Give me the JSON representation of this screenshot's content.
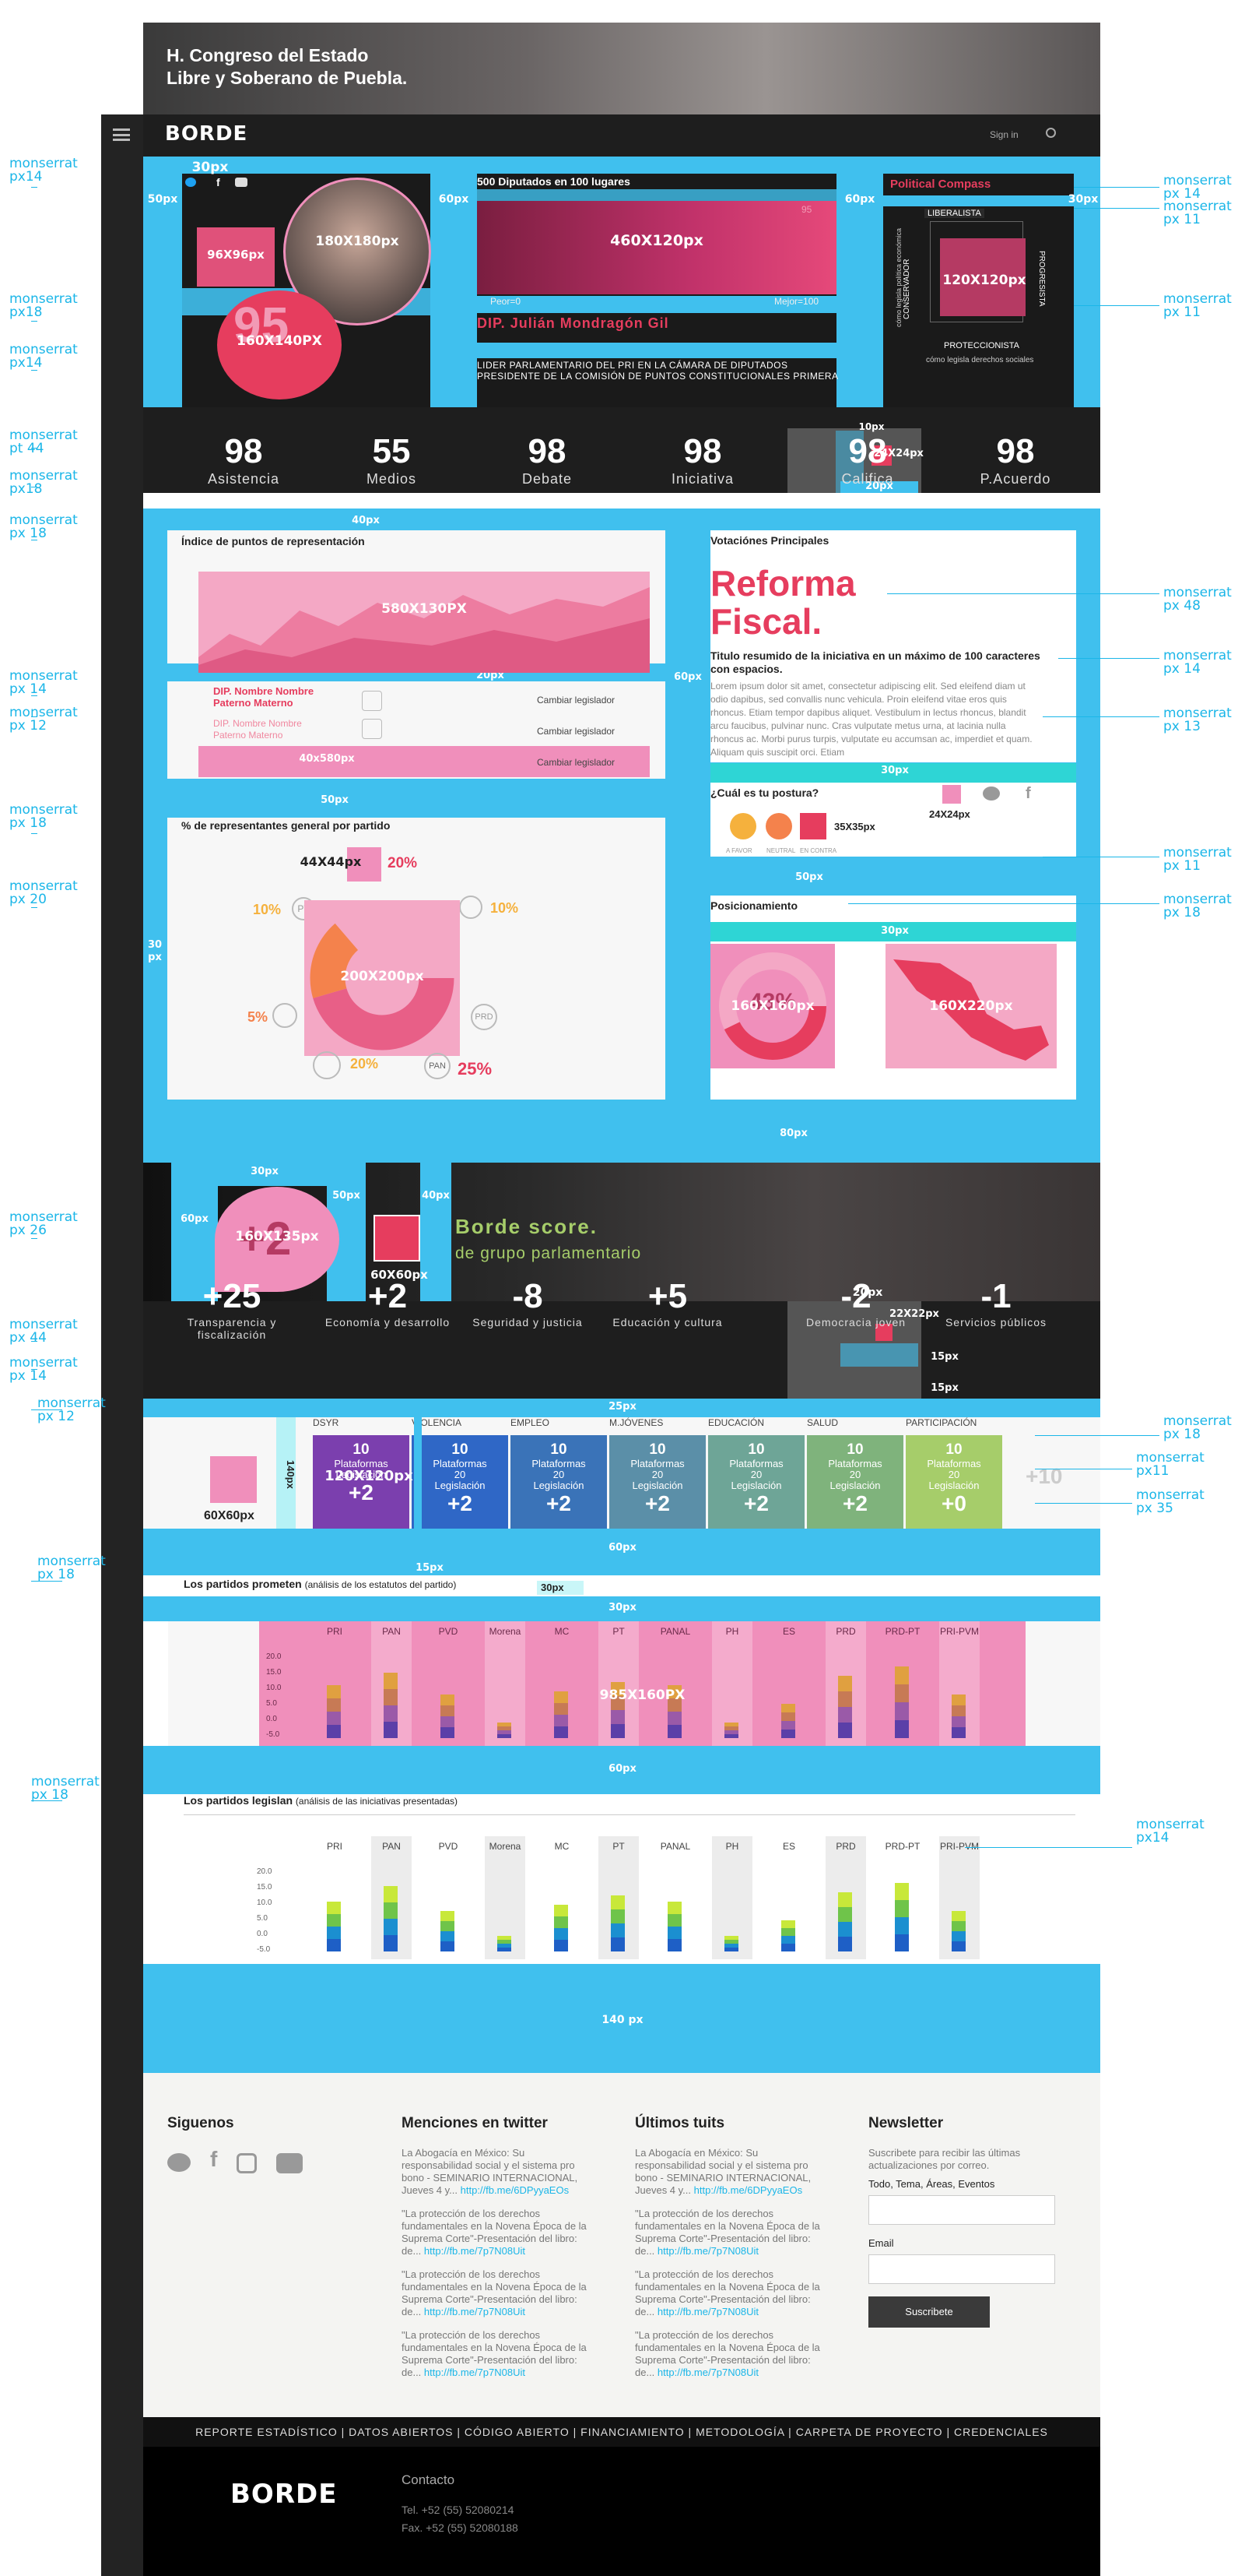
{
  "header": {
    "title_line1": "H. Congreso del Estado",
    "title_line2": "Libre y Soberano de Puebla."
  },
  "topbar": {
    "logo": "BORDE",
    "signin": "Sign in"
  },
  "annotations": [
    {
      "id": "a1",
      "l1": "monserrat",
      "l2": "px14"
    },
    {
      "id": "a2",
      "l1": "monserrat",
      "l2": "px18"
    },
    {
      "id": "a3",
      "l1": "monserrat",
      "l2": "px14"
    },
    {
      "id": "a4",
      "l1": "monserrat",
      "l2": "pt 44"
    },
    {
      "id": "a5",
      "l1": "monserrat",
      "l2": "px18"
    },
    {
      "id": "a6",
      "l1": "monserrat",
      "l2": "px 18"
    },
    {
      "id": "a7",
      "l1": "monserrat",
      "l2": "px 14"
    },
    {
      "id": "a8",
      "l1": "monserrat",
      "l2": "px 12"
    },
    {
      "id": "a9",
      "l1": "monserrat",
      "l2": "px 18"
    },
    {
      "id": "a10",
      "l1": "monserrat",
      "l2": "px 20"
    },
    {
      "id": "a11",
      "l1": "monserrat",
      "l2": "px 26"
    },
    {
      "id": "a12",
      "l1": "monserrat",
      "l2": "px 44"
    },
    {
      "id": "a13",
      "l1": "monserrat",
      "l2": "px 14"
    },
    {
      "id": "a14",
      "l1": "monserrat",
      "l2": "px 12"
    },
    {
      "id": "a15",
      "l1": "monserrat",
      "l2": "px 18"
    },
    {
      "id": "a16",
      "l1": "monserrat",
      "l2": "px 18"
    },
    {
      "id": "r1",
      "l1": "monserrat",
      "l2": "px 14"
    },
    {
      "id": "r2",
      "l1": "monserrat",
      "l2": "px 11"
    },
    {
      "id": "r3",
      "l1": "monserrat",
      "l2": "px 11"
    },
    {
      "id": "r4",
      "l1": "monserrat",
      "l2": "px 48"
    },
    {
      "id": "r5",
      "l1": "monserrat",
      "l2": "px 14"
    },
    {
      "id": "r6",
      "l1": "monserrat",
      "l2": "px 13"
    },
    {
      "id": "r7",
      "l1": "monserrat",
      "l2": "px 11"
    },
    {
      "id": "r8",
      "l1": "monserrat",
      "l2": "px 18"
    },
    {
      "id": "r9",
      "l1": "monserrat",
      "l2": "px 18"
    },
    {
      "id": "r10",
      "l1": "monserrat",
      "l2": "px11"
    },
    {
      "id": "r11",
      "l1": "monserrat",
      "l2": "px 35"
    },
    {
      "id": "r12",
      "l1": "monserrat",
      "l2": "px14"
    }
  ],
  "dims": {
    "d30top": "30px",
    "d50left": "50px",
    "d60a": "60px",
    "d60b": "60px",
    "d30r": "30px",
    "photo": "180X180px",
    "small": "96X96px",
    "circle": "160X140PX",
    "ranking": "460X120px",
    "compass": "120X120px",
    "d40": "40px",
    "d20": "20px",
    "d60mid": "60px",
    "d50a": "50px",
    "d30left": "30",
    "d30leftb": "px",
    "d10": "10px",
    "d24": "24X24px",
    "d20b": "20px",
    "area": "580X130PX",
    "list": "40x580px",
    "d44": "44X44px",
    "donut": "200X200px",
    "d30v": "30px",
    "d50v": "50px",
    "d35": "35X35px",
    "d24b": "24X24px",
    "d30v2": "30px",
    "d160": "160X160px",
    "map": "160X220px",
    "d80": "80px",
    "d30s": "30px",
    "d50s": "50px",
    "d40s": "40px",
    "d60s": "60px",
    "score": "160X135px",
    "sq": "60X60px",
    "d20s": "20px",
    "d22": "22X22px",
    "d15a": "15px",
    "d15b": "15px",
    "d25": "25px",
    "d140": "140px",
    "d60x60": "60X60px",
    "d120": "120X120px",
    "d60c": "60px",
    "d15c": "15px",
    "d30c": "30px",
    "d30d": "30px",
    "bars1": "985X160PX",
    "d60d": "60px",
    "d140b": "140 px"
  },
  "profile": {
    "ranking_title": "500 Diputados en 100 lugares",
    "ranking_low": "Peor=0",
    "ranking_high": "Mejor=100",
    "ranking_val": "95",
    "name": "DIP. Julián Mondragón Gil",
    "role1": "LIDER PARLAMENTARIO DEL PRI EN LA CÁMARA DE DIPUTADOS",
    "role2": "PRESIDENTE DE LA COMISIÓN DE PUNTOS CONSTITUCIONALES PRIMERA",
    "badge": "95",
    "compass_title": "Political Compass",
    "compass_top": "LIBERALISTA",
    "compass_bottom": "PROTECCIONISTA",
    "compass_left": "CONSERVADOR",
    "compass_right": "PROGRESISTA",
    "compass_axis": "cómo legisla política económica",
    "compass_sub": "cómo legisla derechos sociales"
  },
  "stats": [
    {
      "n": "98",
      "l": "Asistencia"
    },
    {
      "n": "55",
      "l": "Medios"
    },
    {
      "n": "98",
      "l": "Debate"
    },
    {
      "n": "98",
      "l": "Iniciativa"
    },
    {
      "n": "98",
      "l": "Califica"
    },
    {
      "n": "98",
      "l": "P.Acuerdo"
    }
  ],
  "left_panel": {
    "title1": "Índice de puntos de representación",
    "leg1_name": "DIP. Nombre Nombre Paterno Materno",
    "leg2_name": "DIP. Nombre Nombre Paterno Materno",
    "change": "Cambiar legislador",
    "title2": "% de representantes general por partido",
    "pct_top": "20%",
    "pct_left": "10%",
    "pct_right": "10%",
    "pct_l2": "5%",
    "pct_bottom": "20%",
    "pct_pan": "25%",
    "lbl_pt": "PT",
    "lbl_prd": "PRD",
    "lbl_pan": "PAN"
  },
  "right_panel": {
    "title": "Votaciónes Principales",
    "headline1": "Reforma",
    "headline2": "Fiscal.",
    "summary": "Titulo resumido de la iniciativa en un máximo de 100 caracteres con espacios.",
    "body": "Lorem ipsum dolor sit amet, consectetur adipiscing elit. Sed eleifend diam ut odio dapibus, sed convallis nunc vehicula. Proin eleifend vitae eros quis rhoncus. Etiam tempor dapibus aliquet. Vestibulum in lectus rhoncus, blandit arcu faucibus, pulvinar nunc. Cras vulputate metus urna, at lacinia nulla rhoncus ac. Morbi purus turpis, vulputate eu accumsan ac, imperdiet et quam. Aliquam quis suscipit orci. Etiam",
    "postura": "¿Cuál es tu postura?",
    "p1": "A FAVOR",
    "p2": "NEUTRAL",
    "p3": "EN CONTRA",
    "posicionamiento": "Posicionamiento",
    "donut_pct": "43%"
  },
  "score": {
    "value": "+2",
    "title": "Borde score.",
    "subtitle": "de grupo parlamentario"
  },
  "scores": [
    {
      "n": "+25",
      "l": "Transparencia y fiscalización"
    },
    {
      "n": "+2",
      "l": "Economía y desarrollo"
    },
    {
      "n": "-8",
      "l": "Seguridad y justicia"
    },
    {
      "n": "+5",
      "l": "Educación y cultura"
    },
    {
      "n": "-2",
      "l": "Democracia joven"
    },
    {
      "n": "-1",
      "l": "Servicios públicos"
    }
  ],
  "parties_cols": [
    {
      "lbl": "DSYR",
      "a": "10",
      "b1": "Plataformas",
      "b2": "",
      "b3": "Legislación",
      "c": "+2",
      "color": "#7b3fae"
    },
    {
      "lbl": "VIOLENCIA",
      "a": "10",
      "b1": "Plataformas",
      "b2": "20",
      "b3": "Legislación",
      "c": "+2",
      "color": "#2f67c6"
    },
    {
      "lbl": "EMPLEO",
      "a": "10",
      "b1": "Plataformas",
      "b2": "20",
      "b3": "Legislación",
      "c": "+2",
      "color": "#3a73b8"
    },
    {
      "lbl": "M.JÓVENES",
      "a": "10",
      "b1": "Plataformas",
      "b2": "20",
      "b3": "Legislación",
      "c": "+2",
      "color": "#5b8fa8"
    },
    {
      "lbl": "EDUCACIÓN",
      "a": "10",
      "b1": "Plataformas",
      "b2": "20",
      "b3": "Legislación",
      "c": "+2",
      "color": "#6ea597"
    },
    {
      "lbl": "SALUD",
      "a": "10",
      "b1": "Plataformas",
      "b2": "20",
      "b3": "Legislación",
      "c": "+2",
      "color": "#7fb37c"
    },
    {
      "lbl": "PARTICIPACIÓN",
      "a": "10",
      "b1": "Plataformas",
      "b2": "20",
      "b3": "Legislación",
      "c": "+0",
      "color": "#a6cd6a"
    }
  ],
  "extra_val": "+10",
  "prometen": {
    "title": "Los partidos prometen",
    "sub": "(análisis de los estatutos del partido)"
  },
  "legislan": {
    "title": "Los partidos legislan",
    "sub": "(análisis de  las iniciativas presentadas)"
  },
  "party_names": [
    "PRI",
    "PAN",
    "PVD",
    "Morena",
    "MC",
    "PT",
    "PANAL",
    "PH",
    "ES",
    "PRD",
    "PRD-PT",
    "PRI-PVM"
  ],
  "y_ticks": [
    "20.0",
    "15.0",
    "10.0",
    "5.0",
    "0.0",
    "-5.0"
  ],
  "footer": {
    "siguenos": "Siguenos",
    "menciones": "Menciones en twitter",
    "tuits": "Últimos tuits",
    "newsletter": "Newsletter",
    "t1": "La Abogacía en México: Su responsabilidad social y el sistema pro bono - SEMINARIO INTERNACIONAL, Jueves 4 y...",
    "t1link": "http://fb.me/6DPyyaEOs",
    "t2": "\"La protección de los derechos fundamentales en la Novena Época de la Suprema Corte\"-Presentación del libro:  de...",
    "t2link": "http://fb.me/7p7N08Uit",
    "nl_desc": "Suscribete para recibir las últimas actualizaciones por correo.",
    "nl_topics": "Todo, Tema, Áreas, Eventos",
    "nl_email": "Email",
    "nl_button": "Suscribete",
    "nav": "REPORTE ESTADÍSTICO  |  DATOS ABIERTOS  |  CÓDIGO ABIERTO  |  FINANCIAMIENTO  |  METODOLOGÍA  |  CARPETA DE PROYECTO  |  CREDENCIALES",
    "logo": "BORDE",
    "contacto": "Contacto",
    "tel": "Tel. +52 (55) 52080214",
    "fax": "Fax. +52 (55) 52080188"
  },
  "colors": {
    "cyan": "#40c0ee",
    "pink": "#f08fbb",
    "red": "#e63d5e",
    "dark": "#1e1e1e"
  }
}
